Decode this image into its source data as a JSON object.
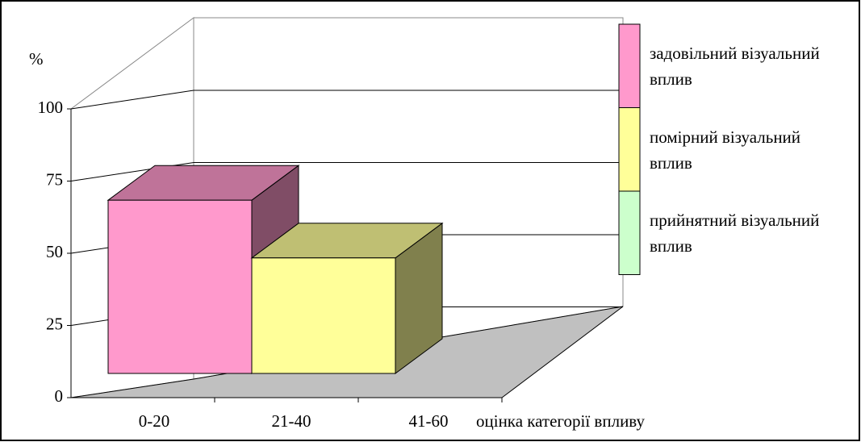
{
  "chart_data": {
    "type": "bar3d",
    "y_label": "%",
    "x_label": "оцінка категорії впливу",
    "categories": [
      "0-20",
      "21-40",
      "41-60"
    ],
    "series": [
      {
        "name": "задовільний візуальний вплив",
        "color": "#ff99cc",
        "values": [
          60,
          0,
          0
        ]
      },
      {
        "name": "помірний візуальний вплив",
        "color": "#ffff99",
        "values": [
          0,
          40,
          0
        ]
      },
      {
        "name": "прийнятний візуальний вплив",
        "color": "#ccffcc",
        "values": [
          0,
          0,
          0
        ]
      }
    ],
    "ylim": [
      0,
      100
    ],
    "yticks": [
      0,
      25,
      50,
      75,
      100
    ],
    "grid": true,
    "legend": "right"
  }
}
